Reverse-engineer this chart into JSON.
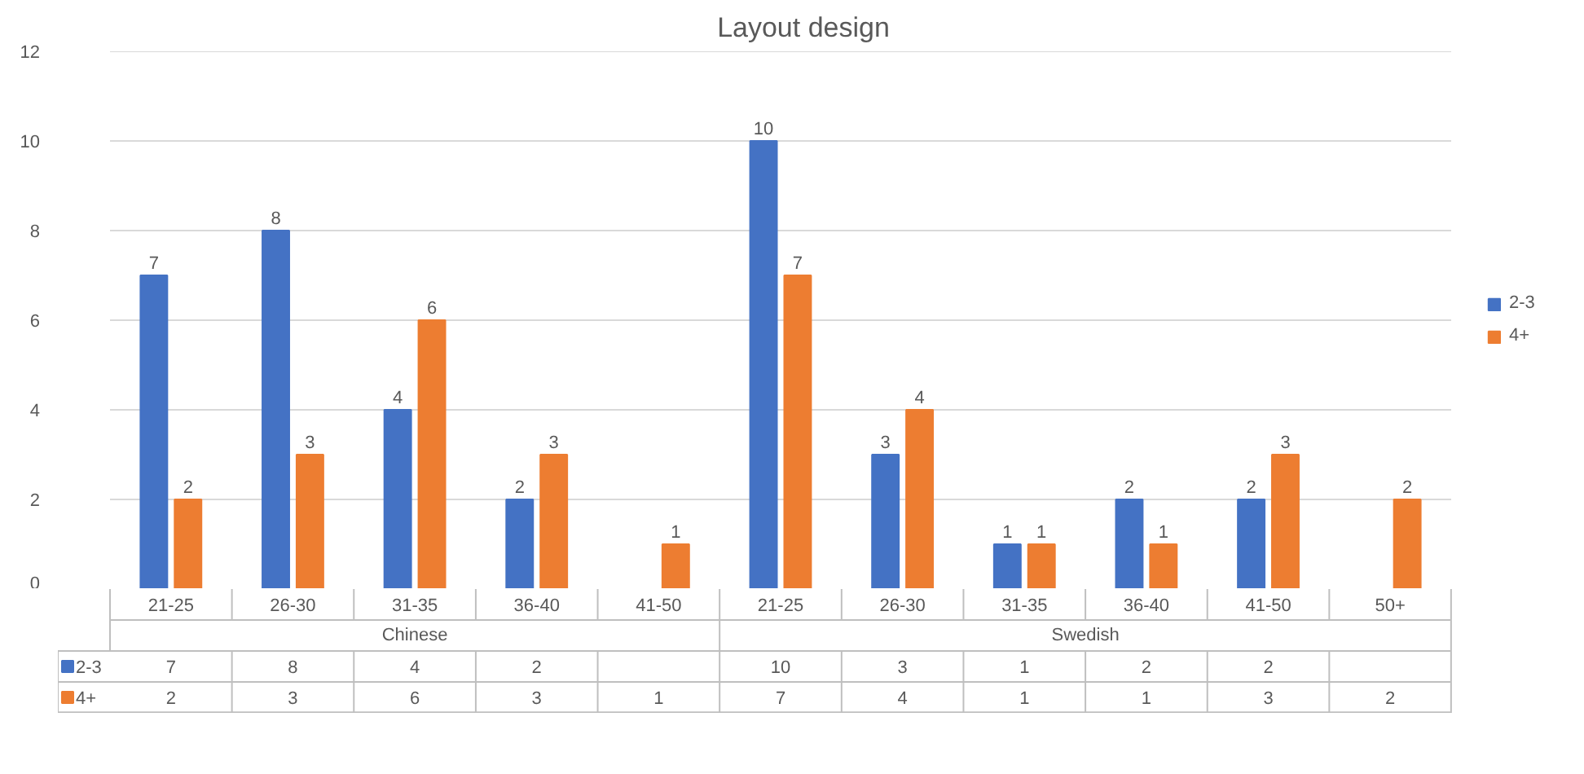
{
  "chart_data": {
    "type": "bar",
    "title": "Layout design",
    "categories": [
      "21-25",
      "26-30",
      "31-35",
      "36-40",
      "41-50",
      "21-25",
      "26-30",
      "31-35",
      "36-40",
      "41-50",
      "50+"
    ],
    "series": [
      {
        "name": "2-3",
        "color": "#4472c4",
        "values": [
          7,
          8,
          4,
          2,
          null,
          10,
          3,
          1,
          2,
          2,
          null
        ],
        "value_labels": [
          "7",
          "8",
          "4",
          "2",
          null,
          "10",
          "3",
          "1",
          "2",
          "2",
          null
        ]
      },
      {
        "name": "4+",
        "color": "#ed7d31",
        "values": [
          2,
          3,
          6,
          3,
          1,
          7,
          4,
          1,
          1,
          3,
          2
        ],
        "value_labels": [
          "2",
          "3",
          "6",
          "3",
          "1",
          "7",
          "4",
          "1",
          "1",
          "3",
          "2"
        ]
      }
    ],
    "annotations": [
      "Chinese",
      "Swedish"
    ],
    "ylim": [
      0,
      12
    ],
    "yticks": [
      0,
      2,
      4,
      6,
      8,
      10,
      12
    ],
    "grid": "y",
    "legend": "right",
    "data_labels": true
  }
}
